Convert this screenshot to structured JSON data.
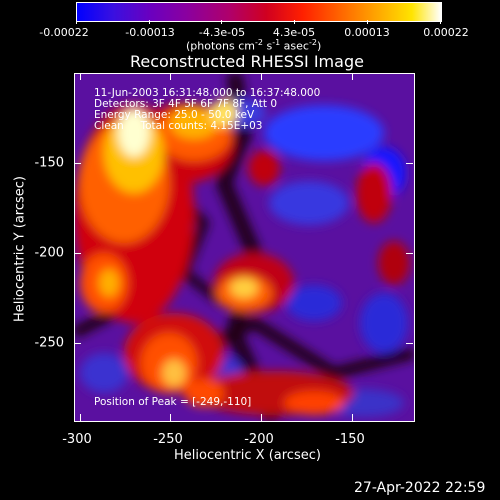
{
  "colorbar": {
    "tick_labels": [
      "-0.00022",
      "-0.00013",
      "-4.3e-05",
      "4.3e-05",
      "0.00013",
      "0.00022"
    ],
    "unit_label": "(photons cm",
    "unit_sup1": "-2",
    "unit_mid1": " s",
    "unit_sup2": "-1",
    "unit_mid2": " asec",
    "unit_sup3": "-2",
    "unit_end": ")",
    "color_stops": [
      "#0000ff",
      "#5000c8",
      "#96009b",
      "#c8003c",
      "#ff0000",
      "#ff7800",
      "#ffd200",
      "#ffffff"
    ]
  },
  "plot": {
    "title": "Reconstructed RHESSI Image",
    "xlabel": "Heliocentric X (arcsec)",
    "ylabel": "Heliocentric Y (arcsec)",
    "x_ticks": [
      "-300",
      "-250",
      "-200",
      "-150"
    ],
    "y_ticks": [
      "-150",
      "-200",
      "-250"
    ],
    "annotation": {
      "line1": "11-Jun-2003 16:31:48.000 to 16:37:48.000",
      "line2": "Detectors: 3F 4F 5F 6F 7F 8F, Att 0",
      "line3": "Energy Range: 25.0 - 50.0 keV",
      "line4": "Clean     Total counts: 4.15E+03",
      "peak": "Position of Peak = [-249,-110]"
    }
  },
  "footer": {
    "timestamp": "27-Apr-2022 22:59"
  }
}
